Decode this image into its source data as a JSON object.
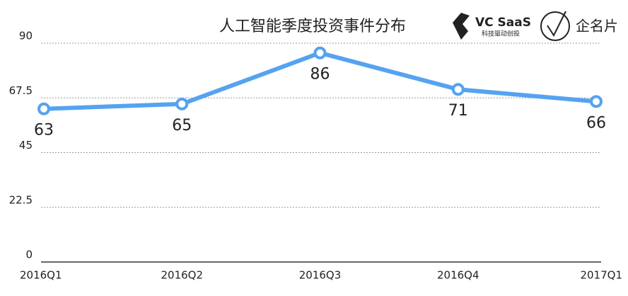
{
  "chart_data": {
    "type": "line",
    "title": "人工智能季度投资事件分布",
    "annotations": [
      "VC SaaS",
      "科技驱动创投",
      "企名片"
    ],
    "categories": [
      "2016Q1",
      "2016Q2",
      "2016Q3",
      "2016Q4",
      "2017Q1"
    ],
    "values": [
      63,
      65,
      86,
      71,
      66
    ],
    "color": "#55a3f0",
    "ylim": [
      0,
      90
    ],
    "yticks": [
      0,
      22.5,
      45,
      67.5,
      90
    ],
    "grid": true
  }
}
